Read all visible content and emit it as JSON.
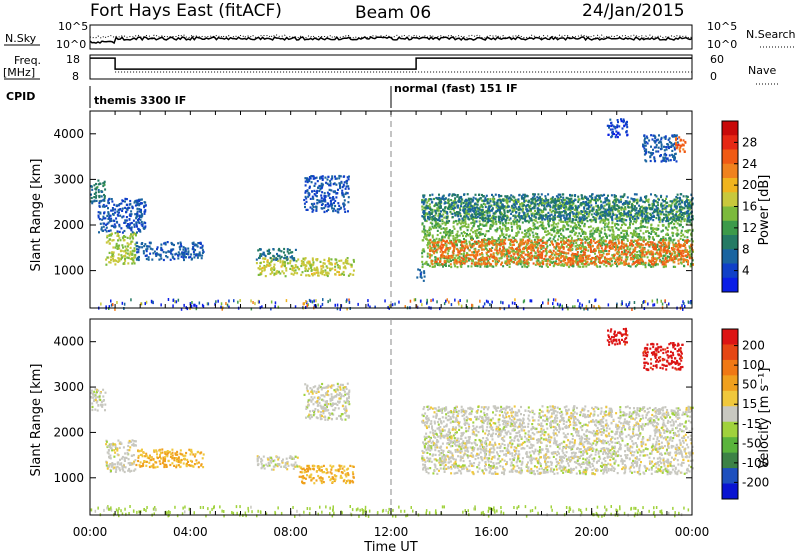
{
  "header": {
    "station": "Fort Hays East (fitACF)",
    "beam": "Beam 06",
    "date": "24/Jan/2015"
  },
  "summary": {
    "nsky_label": "N.Sky",
    "nsearch_label": "N.Search",
    "freq_label_1": "Freq.",
    "freq_label_2": "[MHz]",
    "nave_label": "Nave",
    "cpid_label": "CPID",
    "count_ticks": [
      "10^5",
      "10^0"
    ],
    "freq_ticks": [
      "18",
      "8"
    ],
    "nave_ticks": [
      "60",
      "0"
    ],
    "cpid_modes": [
      {
        "label": "themis 3300 IF",
        "start": 0,
        "end": 12
      },
      {
        "label": "normal (fast) 151 IF",
        "start": 12,
        "end": 24
      }
    ],
    "freq_series": [
      {
        "start": 0,
        "end": 1.0,
        "value": 17.5
      },
      {
        "start": 1.0,
        "end": 13.0,
        "value": 12.5
      },
      {
        "start": 13.0,
        "end": 24,
        "value": 17.5
      }
    ]
  },
  "chart_data": [
    {
      "type": "heatmap",
      "quantity": "Power",
      "ylabel": "Slant Range [km]",
      "yticks": [
        "1000",
        "2000",
        "3000",
        "4000"
      ],
      "ylim": [
        180,
        4500
      ],
      "xlim": [
        0,
        24
      ],
      "colorbar": {
        "label": "Power [dB]",
        "ticks": [
          "4",
          "8",
          "12",
          "16",
          "20",
          "24",
          "28"
        ],
        "range": [
          0,
          32
        ],
        "colors": [
          "#0a1ee6",
          "#1040c8",
          "#1a64a0",
          "#247a64",
          "#3c9a4a",
          "#7cba3c",
          "#c8c83c",
          "#f0b41e",
          "#f0821e",
          "#f05a14",
          "#e62814",
          "#c80a0a"
        ]
      },
      "regions": [
        {
          "t0": 0.0,
          "t1": 0.6,
          "r0": 2500,
          "r1": 3000,
          "v": 9
        },
        {
          "t0": 0.6,
          "t1": 1.8,
          "r0": 1150,
          "r1": 1850,
          "v": 16
        },
        {
          "t0": 1.8,
          "t1": 4.5,
          "r0": 1250,
          "r1": 1650,
          "v": 6
        },
        {
          "t0": 0.3,
          "t1": 2.2,
          "r0": 1850,
          "r1": 2600,
          "v": 5
        },
        {
          "t0": 6.6,
          "t1": 10.5,
          "r0": 900,
          "r1": 1300,
          "v": 17
        },
        {
          "t0": 6.6,
          "t1": 8.2,
          "r0": 1250,
          "r1": 1500,
          "v": 8
        },
        {
          "t0": 8.5,
          "t1": 10.3,
          "r0": 2300,
          "r1": 3100,
          "v": 5
        },
        {
          "t0": 13.0,
          "t1": 13.3,
          "r0": 800,
          "r1": 1050,
          "v": 6
        },
        {
          "t0": 13.2,
          "t1": 24.0,
          "r0": 1100,
          "r1": 2600,
          "v": 14
        },
        {
          "t0": 13.5,
          "t1": 24.0,
          "r0": 1150,
          "r1": 1700,
          "v": 24
        },
        {
          "t0": 13.2,
          "t1": 24.0,
          "r0": 2100,
          "r1": 2700,
          "v": 8
        },
        {
          "t0": 20.6,
          "t1": 21.4,
          "r0": 3950,
          "r1": 4350,
          "v": 4
        },
        {
          "t0": 22.0,
          "t1": 23.4,
          "r0": 3400,
          "r1": 4000,
          "v": 6
        },
        {
          "t0": 23.3,
          "t1": 23.7,
          "r0": 3600,
          "r1": 4000,
          "v": 25
        }
      ]
    },
    {
      "type": "heatmap",
      "quantity": "Velocity",
      "ylabel": "Slant Range [km]",
      "yticks": [
        "1000",
        "2000",
        "3000",
        "4000"
      ],
      "ylim": [
        180,
        4500
      ],
      "xlim": [
        0,
        24
      ],
      "xticks": [
        "00:00",
        "04:00",
        "08:00",
        "12:00",
        "16:00",
        "20:00",
        "00:00"
      ],
      "xlabel": "Time UT",
      "colorbar": {
        "label": "Velocity [m s⁻¹]",
        "ticks": [
          "200",
          "100",
          "50",
          "15",
          "-15",
          "-50",
          "-100",
          "-200"
        ],
        "range": [
          -250,
          250
        ],
        "colors": [
          "#0a14d2",
          "#1e50be",
          "#3c8246",
          "#5ab43c",
          "#a0d23c",
          "#c8c8c0",
          "#f0c83c",
          "#f0a01e",
          "#f07814",
          "#e64614",
          "#dc1414"
        ]
      },
      "regions": [
        {
          "t0": 0.0,
          "t1": 0.6,
          "r0": 2500,
          "r1": 3000,
          "v": 0
        },
        {
          "t0": 0.6,
          "t1": 1.8,
          "r0": 1150,
          "r1": 1850,
          "v": 0
        },
        {
          "t0": 1.8,
          "t1": 4.5,
          "r0": 1250,
          "r1": 1650,
          "v": 70
        },
        {
          "t0": 6.6,
          "t1": 8.3,
          "r0": 1200,
          "r1": 1500,
          "v": 0
        },
        {
          "t0": 8.3,
          "t1": 10.5,
          "r0": 900,
          "r1": 1300,
          "v": 70
        },
        {
          "t0": 8.5,
          "t1": 10.3,
          "r0": 2300,
          "r1": 3100,
          "v": 0
        },
        {
          "t0": 13.2,
          "t1": 24.0,
          "r0": 1100,
          "r1": 2600,
          "v": 0
        },
        {
          "t0": 20.6,
          "t1": 21.4,
          "r0": 3950,
          "r1": 4350,
          "v": 230
        },
        {
          "t0": 22.0,
          "t1": 23.6,
          "r0": 3400,
          "r1": 4000,
          "v": 230
        }
      ]
    }
  ]
}
